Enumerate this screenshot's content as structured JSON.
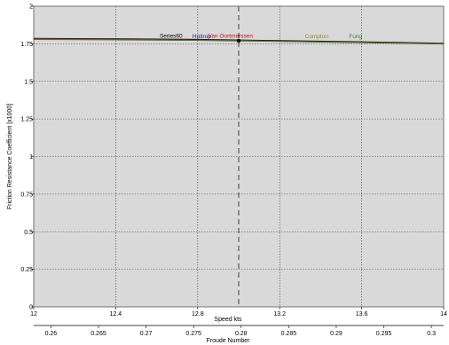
{
  "chart_data": {
    "type": "line",
    "xlabel": "Speed  kts",
    "x2label": "Froude Number",
    "ylabel": "Friction Resistance Coefficient [x1000]",
    "xlim": [
      12,
      14
    ],
    "ylim": [
      0,
      2
    ],
    "x_ticks": [
      "12",
      "12.4",
      "12.8",
      "13.2",
      "13.6",
      "14"
    ],
    "x_tick_values": [
      12,
      12.4,
      12.8,
      13.2,
      13.6,
      14
    ],
    "y_ticks": [
      "0",
      "0.25",
      "0.5",
      "0.75",
      "1",
      "1.25",
      "1.5",
      "1.75",
      "2"
    ],
    "y_tick_values": [
      0,
      0.25,
      0.5,
      0.75,
      1,
      1.25,
      1.5,
      1.75,
      2
    ],
    "x2_ticks": [
      "0.26",
      "0.265",
      "0.27",
      "0.275",
      "0.28",
      "0.285",
      "0.29",
      "0.295",
      "0.3"
    ],
    "x2_tick_speeds": [
      12.084,
      12.316,
      12.548,
      12.78,
      13.012,
      13.244,
      13.476,
      13.708,
      13.94
    ],
    "grid": true,
    "marker_line_x": 13.0,
    "marker_point": {
      "x": 13.0,
      "y": 1.77
    },
    "series": [
      {
        "name": "Series60",
        "color": "#000000",
        "x": [
          12,
          12.4,
          12.8,
          13.0,
          13.2,
          13.6,
          14
        ],
        "y": [
          1.785,
          1.782,
          1.778,
          1.774,
          1.77,
          1.762,
          1.752
        ]
      },
      {
        "name": "Holtrop",
        "color": "#1a1aa8",
        "x": [
          12,
          12.4,
          12.8,
          13.0,
          13.2,
          13.6,
          14
        ],
        "y": [
          1.783,
          1.779,
          1.775,
          1.771,
          1.767,
          1.759,
          1.75
        ]
      },
      {
        "name": "Van Oortmerssen",
        "color": "#b01818",
        "x": [
          12,
          12.4,
          12.8,
          13.0,
          13.2,
          13.6,
          14
        ],
        "y": [
          1.784,
          1.78,
          1.776,
          1.772,
          1.768,
          1.76,
          1.751
        ]
      },
      {
        "name": "Compton",
        "color": "#8a8a3a",
        "x": [
          12,
          12.4,
          12.8,
          13.0,
          13.2,
          13.6,
          14
        ],
        "y": [
          1.78,
          1.777,
          1.773,
          1.77,
          1.766,
          1.758,
          1.749
        ]
      },
      {
        "name": "Fung",
        "color": "#3a7a3a",
        "x": [
          12,
          12.4,
          12.8,
          13.0,
          13.2,
          13.6,
          14
        ],
        "y": [
          1.779,
          1.776,
          1.772,
          1.769,
          1.765,
          1.757,
          1.748
        ]
      }
    ]
  }
}
